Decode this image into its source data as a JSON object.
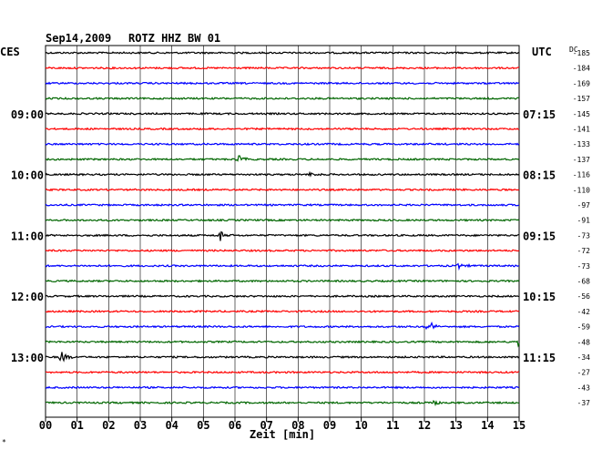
{
  "header": {
    "date": "Sep14,2009",
    "station": "ROTZ HHZ BW 01",
    "left_zone": "CES",
    "right_zone": "UTC",
    "dc_label": "DC"
  },
  "footer": {
    "xlabel": "Zeit [min]",
    "corner_mark": "*"
  },
  "colors": {
    "cycle": [
      "#000000",
      "#ff0000",
      "#0000ff",
      "#006600"
    ],
    "grid": "#000000"
  },
  "chart_data": {
    "type": "line",
    "title": "Sep14,2009  ROTZ HHZ BW 01",
    "xlabel": "Zeit [min]",
    "ylabel": "",
    "xlim": [
      0,
      15
    ],
    "x_ticks": [
      "00",
      "01",
      "02",
      "03",
      "04",
      "05",
      "06",
      "07",
      "08",
      "09",
      "10",
      "11",
      "12",
      "13",
      "14",
      "15"
    ],
    "trace_count": 24,
    "left_time_labels": [
      {
        "trace": 4,
        "label": "09:00"
      },
      {
        "trace": 8,
        "label": "10:00"
      },
      {
        "trace": 12,
        "label": "11:00"
      },
      {
        "trace": 16,
        "label": "12:00"
      },
      {
        "trace": 20,
        "label": "13:00"
      }
    ],
    "right_time_labels": [
      {
        "trace": 4,
        "label": "07:15"
      },
      {
        "trace": 8,
        "label": "08:15"
      },
      {
        "trace": 12,
        "label": "09:15"
      },
      {
        "trace": 16,
        "label": "10:15"
      },
      {
        "trace": 20,
        "label": "11:15"
      }
    ],
    "dc_offsets": [
      "-185",
      "-184",
      "-169",
      "-157",
      "-145",
      "-141",
      "-133",
      "-137",
      "-116",
      "-110",
      "-97",
      "-91",
      "-73",
      "-72",
      "-73",
      "-68",
      "-56",
      "-42",
      "-59",
      "-48",
      "-34",
      "-27",
      "-43",
      "-37"
    ],
    "events": [
      {
        "trace": 7,
        "minute": 6.1,
        "amplitude": 6
      },
      {
        "trace": 8,
        "minute": 8.4,
        "amplitude": 3
      },
      {
        "trace": 12,
        "minute": 5.5,
        "amplitude": 7
      },
      {
        "trace": 14,
        "minute": 13.1,
        "amplitude": 4
      },
      {
        "trace": 18,
        "minute": 12.1,
        "amplitude": 9
      },
      {
        "trace": 19,
        "minute": 15.0,
        "amplitude": 10
      },
      {
        "trace": 20,
        "minute": 0.5,
        "amplitude": 9
      },
      {
        "trace": 23,
        "minute": 12.3,
        "amplitude": 4
      }
    ]
  }
}
